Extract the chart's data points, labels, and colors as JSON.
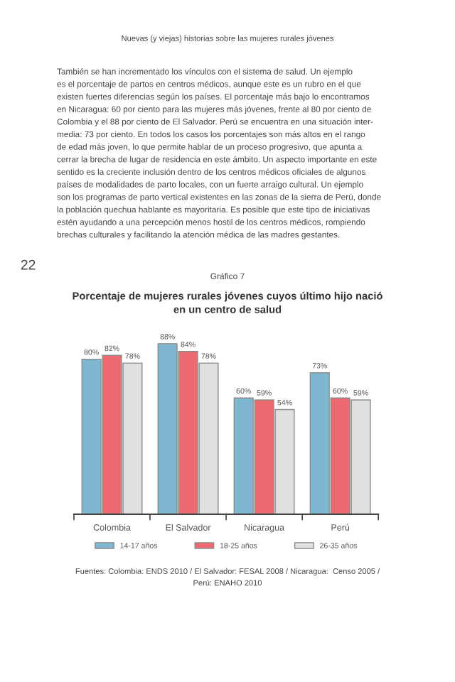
{
  "chart_data": {
    "type": "bar",
    "title": "Porcentaje de mujeres rurales jóvenes cuyos último hijo nació\nen un centro de salud",
    "annotations": [
      "Nuevas (y viejas) historias sobre las mujeres rurales jóvenes",
      "También se han incrementado los vínculos con el sistema de salud. Un ejemplo\nes el porcentaje de partos en centros médicos, aunque este es un rubro en el que\nexisten fuertes diferencias según los países. El porcentaje más bajo lo encontramos\nen Nicaragua: 60 por ciento para las mujeres más jóvenes, frente al 80 por ciento de\nColombia y el 88 por ciento de El Salvador. Perú se encuentra en una situación inter-\nmedia: 73 por ciento. En todos los casos los porcentajes son más altos en el rango\nde edad más joven, lo que permite hablar de un proceso progresivo, que apunta a\ncerrar la brecha de lugar de residencia en este ámbito. Un aspecto importante en este\nsentido es la creciente inclusión dentro de los centros médicos oficiales de algunos\npaíses de modalidades de parto locales, con un fuerte arraigo cultural. Un ejemplo\nson los programas de parto vertical existentes en las zonas de la sierra de Perú, donde\nla población quechua hablante es mayoritaria. Es posible que este tipo de iniciativas\nestén ayudando a una percepción menos hostil de los centros médicos, rompiendo\nbrechas culturales y facilitando la atención médica de las madres gestantes.",
      "22",
      "Gráfico 7",
      "Fuentes: Colombia: ENDS 2010 / El Salvador: FESAL 2008 / Nicaragua:  Censo 2005 /\nPerú: ENAHO 2010"
    ],
    "categories": [
      "Colombia",
      "El Salvador",
      "Nicaragua",
      "Perú"
    ],
    "series": [
      {
        "name": "14-17 años",
        "color": "#80b7d0",
        "values": [
          80,
          88,
          60,
          73
        ],
        "value_labels": [
          "80%",
          "88%",
          "60%",
          "73%"
        ]
      },
      {
        "name": "18-25 años",
        "color": "#ec6b71",
        "values": [
          82,
          84,
          59,
          60
        ],
        "value_labels": [
          "82%",
          "84%",
          "59%",
          "60%"
        ]
      },
      {
        "name": "26-35 años",
        "color": "#e0e0e0",
        "values": [
          78,
          78,
          54,
          59
        ],
        "value_labels": [
          "78%",
          "78%",
          "54%",
          "59%"
        ]
      }
    ],
    "legend": "bottom"
  }
}
